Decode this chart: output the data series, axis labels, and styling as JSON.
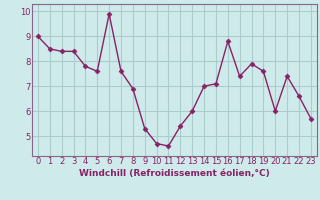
{
  "x": [
    0,
    1,
    2,
    3,
    4,
    5,
    6,
    7,
    8,
    9,
    10,
    11,
    12,
    13,
    14,
    15,
    16,
    17,
    18,
    19,
    20,
    21,
    22,
    23
  ],
  "y": [
    9.0,
    8.5,
    8.4,
    8.4,
    7.8,
    7.6,
    9.9,
    7.6,
    6.9,
    5.3,
    4.7,
    4.6,
    5.4,
    6.0,
    7.0,
    7.1,
    8.8,
    7.4,
    7.9,
    7.6,
    6.0,
    7.4,
    6.6,
    5.7
  ],
  "line_color": "#882266",
  "marker": "D",
  "markersize": 2.5,
  "linewidth": 1.0,
  "xlabel": "Windchill (Refroidissement éolien,°C)",
  "xlabel_fontsize": 6.5,
  "tick_fontsize": 6,
  "ylim": [
    4.2,
    10.3
  ],
  "yticks": [
    5,
    6,
    7,
    8,
    9,
    10
  ],
  "xlim": [
    -0.5,
    23.5
  ],
  "bg_color": "#ceeaea",
  "grid_color": "#aacccc",
  "axis_label_color": "#882266",
  "tick_color": "#882266",
  "spine_color": "#886688"
}
